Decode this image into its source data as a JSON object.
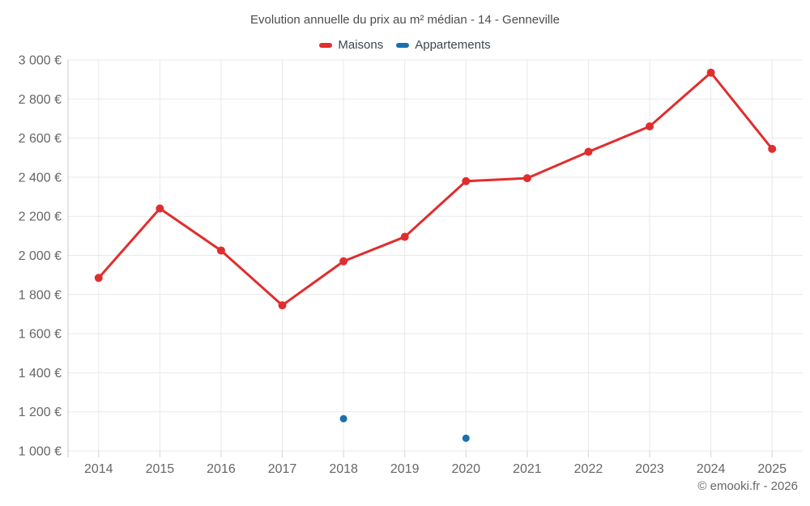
{
  "title": "Evolution annuelle du prix au m² médian - 14 - Genneville",
  "footer": "© emooki.fr - 2026",
  "chart_data": {
    "type": "line",
    "categories": [
      "2014",
      "2015",
      "2016",
      "2017",
      "2018",
      "2019",
      "2020",
      "2021",
      "2022",
      "2023",
      "2024",
      "2025"
    ],
    "series": [
      {
        "name": "Maisons",
        "color": "#e12d2d",
        "line_width": 3,
        "marker_radius": 5,
        "values": [
          1885,
          2240,
          2025,
          1745,
          1970,
          2095,
          2380,
          2395,
          2530,
          2660,
          2935,
          2545
        ]
      },
      {
        "name": "Appartements",
        "color": "#1a6fad",
        "line_width": 0,
        "marker_radius": 4.5,
        "values": [
          null,
          null,
          null,
          null,
          1165,
          null,
          1065,
          null,
          null,
          null,
          null,
          null
        ]
      }
    ],
    "ylim": [
      1000,
      3000
    ],
    "y_ticks": {
      "values": [
        1000,
        1200,
        1400,
        1600,
        1800,
        2000,
        2200,
        2400,
        2600,
        2800,
        3000
      ],
      "labels": [
        "1 000 €",
        "1 200 €",
        "1 400 €",
        "1 600 €",
        "1 800 €",
        "2 000 €",
        "2 200 €",
        "2 400 €",
        "2 600 €",
        "2 800 €",
        "3 000 €"
      ]
    },
    "xlabel": "",
    "ylabel": "",
    "grid": true,
    "legend_position": "top"
  },
  "colors": {
    "grid": "#e9e9e9",
    "axis_line": "#c9c9c9",
    "tick": "#d4d4d4",
    "tick_text": "#666666",
    "title_text": "#4c4c4c",
    "legend_text": "#3d454d",
    "footer_text": "#666666"
  }
}
